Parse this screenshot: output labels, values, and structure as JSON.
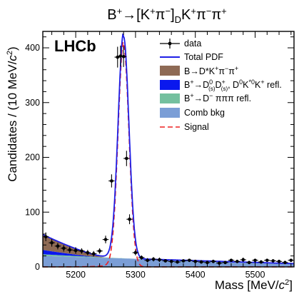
{
  "chart_data": {
    "type": "histogram",
    "title": "B⁺→[K⁺π⁻]_D K⁺π⁻π⁺",
    "experiment_label": "LHCb",
    "xlabel": "Mass [MeV/c²]",
    "ylabel": "Candidates / (10 MeV/c²)",
    "xlim": [
      5145,
      5565
    ],
    "ylim": [
      0,
      430
    ],
    "x_ticks": [
      5200,
      5300,
      5400,
      5500
    ],
    "y_ticks": [
      0,
      100,
      200,
      300,
      400
    ],
    "bin_width": 10,
    "legend_position": "top-right",
    "legend": [
      {
        "label": "data",
        "kind": "errorbar",
        "color": "#000000"
      },
      {
        "label": "Total PDF",
        "kind": "line",
        "color": "#1f1fe6"
      },
      {
        "label": "B→D*K⁺π⁻π⁺",
        "kind": "fill",
        "color": "#8e6a55"
      },
      {
        "label": "B⁺→D⁰₍ₛ₎D⁺₍ₛ₎, D⁰K*⁰K⁺ refl.",
        "kind": "fill",
        "color": "#0a18ee"
      },
      {
        "label": "B⁺→D⁻ πππ refl.",
        "kind": "fill",
        "color": "#74c09f"
      },
      {
        "label": "Comb bkg",
        "kind": "fill",
        "color": "#7b9ed6"
      },
      {
        "label": "Signal",
        "kind": "dashed",
        "color": "#ee2020"
      }
    ],
    "data": {
      "x": [
        5150,
        5160,
        5170,
        5180,
        5190,
        5200,
        5210,
        5220,
        5230,
        5240,
        5250,
        5260,
        5270,
        5275,
        5280,
        5285,
        5290,
        5300,
        5310,
        5320,
        5330,
        5340,
        5350,
        5360,
        5370,
        5380,
        5390,
        5400,
        5410,
        5420,
        5430,
        5440,
        5450,
        5460,
        5470,
        5480,
        5490,
        5500,
        5510,
        5520,
        5530,
        5540,
        5550,
        5560
      ],
      "y": [
        55,
        44,
        38,
        34,
        31,
        30,
        29,
        26,
        24,
        29,
        50,
        157,
        383,
        385,
        384,
        198,
        87,
        26,
        17,
        12,
        14,
        13,
        11,
        10,
        9,
        11,
        12,
        10,
        9,
        8,
        10,
        7,
        8,
        12,
        10,
        13,
        8,
        12,
        9,
        12,
        11,
        10,
        8,
        12
      ],
      "yerr": [
        8,
        7,
        6,
        6,
        6,
        6,
        5,
        5,
        5,
        5,
        7,
        12,
        19,
        19,
        19,
        14,
        9,
        5,
        4,
        4,
        4,
        4,
        3,
        3,
        3,
        3,
        3,
        3,
        3,
        3,
        3,
        3,
        3,
        3,
        3,
        4,
        3,
        3,
        3,
        3,
        3,
        3,
        3,
        3
      ]
    },
    "components": {
      "comb_bkg": {
        "start": 20,
        "end": 6
      },
      "dminus_refl": {
        "from": 5145,
        "to": 5300,
        "amplitude": 3
      },
      "dsds_refl": {
        "from": 5145,
        "to": 5240,
        "amplitude": 8
      },
      "dstar_kpipi": {
        "from": 5145,
        "to": 5250,
        "amplitude": 28
      }
    },
    "signal": {
      "mean": 5280,
      "sigma": 9,
      "peak": 405,
      "tail": 8
    }
  }
}
